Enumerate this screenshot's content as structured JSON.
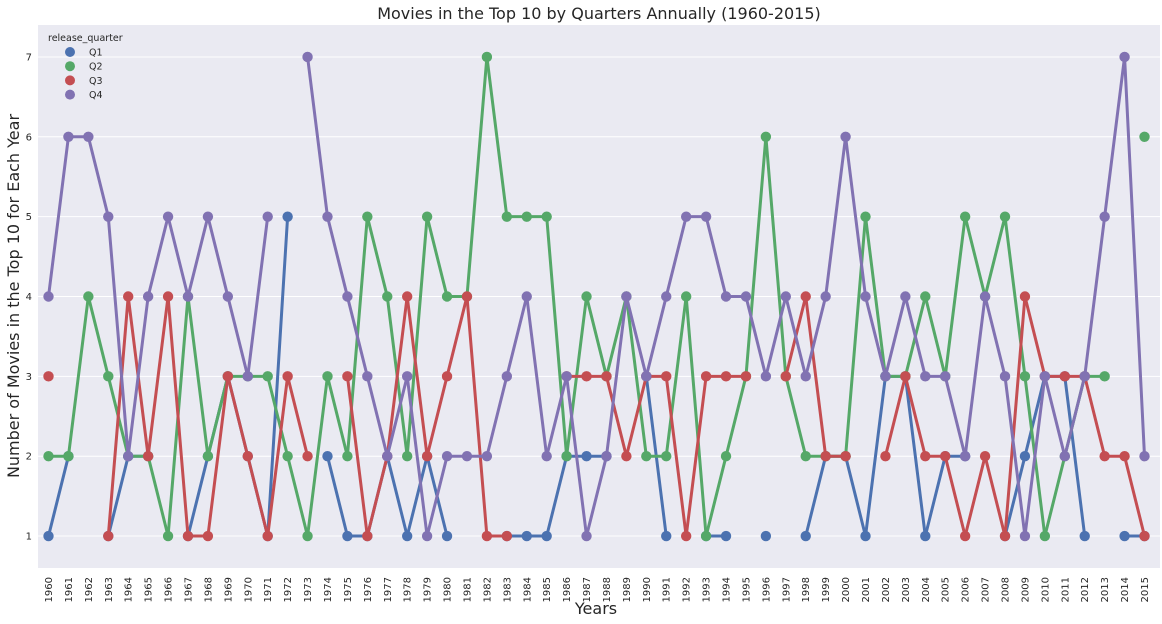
{
  "chart_data": {
    "type": "line",
    "title": "Movies in the Top 10 by Quarters Annually (1960-2015)",
    "xlabel": "Years",
    "ylabel": "Number of Movies in the Top 10 for Each Year",
    "ylim": [
      0.6,
      7.4
    ],
    "yticks": [
      1,
      2,
      3,
      4,
      5,
      6,
      7
    ],
    "grid": true,
    "legend": {
      "title": "release_quarter",
      "placement": "top-left"
    },
    "categories": [
      "1960",
      "1961",
      "1962",
      "1963",
      "1964",
      "1965",
      "1966",
      "1967",
      "1968",
      "1969",
      "1970",
      "1971",
      "1972",
      "1973",
      "1974",
      "1975",
      "1976",
      "1977",
      "1978",
      "1979",
      "1980",
      "1981",
      "1982",
      "1983",
      "1984",
      "1985",
      "1986",
      "1987",
      "1988",
      "1989",
      "1990",
      "1991",
      "1992",
      "1993",
      "1994",
      "1995",
      "1996",
      "1997",
      "1998",
      "1999",
      "2000",
      "2001",
      "2002",
      "2003",
      "2004",
      "2005",
      "2006",
      "2007",
      "2008",
      "2009",
      "2010",
      "2011",
      "2012",
      "2013",
      "2014",
      "2015"
    ],
    "series": [
      {
        "name": "Q1",
        "color": "#4c72b0",
        "values": [
          1,
          2,
          null,
          1,
          2,
          2,
          null,
          1,
          2,
          3,
          2,
          1,
          5,
          null,
          2,
          1,
          1,
          2,
          1,
          2,
          1,
          null,
          null,
          1,
          1,
          1,
          2,
          2,
          2,
          null,
          3,
          1,
          null,
          1,
          1,
          null,
          1,
          null,
          1,
          2,
          2,
          1,
          3,
          3,
          1,
          2,
          2,
          null,
          1,
          2,
          3,
          3,
          1,
          null,
          1,
          1
        ]
      },
      {
        "name": "Q2",
        "color": "#55a868",
        "values": [
          2,
          2,
          4,
          3,
          2,
          2,
          1,
          4,
          2,
          3,
          3,
          3,
          2,
          1,
          3,
          2,
          5,
          4,
          2,
          5,
          4,
          4,
          7,
          5,
          5,
          5,
          2,
          4,
          3,
          4,
          2,
          2,
          4,
          1,
          2,
          3,
          6,
          3,
          2,
          2,
          2,
          5,
          3,
          3,
          4,
          3,
          5,
          4,
          5,
          3,
          1,
          2,
          3,
          3,
          null,
          6
        ]
      },
      {
        "name": "Q3",
        "color": "#c44e52",
        "values": [
          3,
          null,
          null,
          1,
          4,
          2,
          4,
          1,
          1,
          3,
          2,
          1,
          3,
          2,
          null,
          3,
          1,
          2,
          4,
          2,
          3,
          4,
          1,
          1,
          null,
          null,
          3,
          3,
          3,
          2,
          3,
          3,
          1,
          3,
          3,
          3,
          null,
          3,
          4,
          2,
          2,
          null,
          2,
          3,
          2,
          2,
          1,
          2,
          1,
          4,
          3,
          3,
          3,
          2,
          2,
          1
        ]
      },
      {
        "name": "Q4",
        "color": "#8172b2",
        "values": [
          4,
          6,
          6,
          5,
          2,
          4,
          5,
          4,
          5,
          4,
          3,
          5,
          null,
          7,
          5,
          4,
          3,
          2,
          3,
          1,
          2,
          2,
          2,
          3,
          4,
          2,
          3,
          1,
          2,
          4,
          3,
          4,
          5,
          5,
          4,
          4,
          3,
          4,
          3,
          4,
          6,
          4,
          3,
          4,
          3,
          3,
          2,
          4,
          3,
          1,
          3,
          2,
          3,
          5,
          7,
          2
        ]
      }
    ]
  }
}
